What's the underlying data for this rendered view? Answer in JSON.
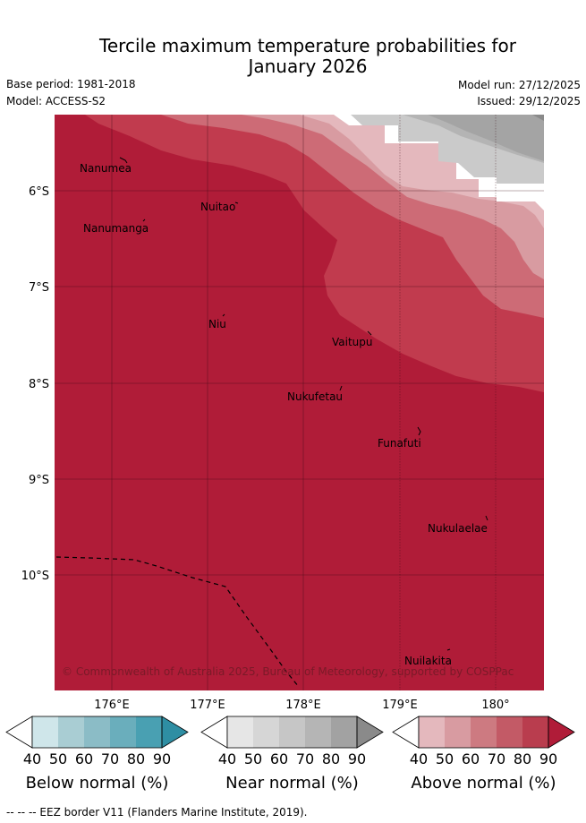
{
  "title_line1": "Tercile maximum temperature probabilities for",
  "title_line2": "January 2026",
  "base_period": "Base period: 1981-2018",
  "model": "Model: ACCESS-S2",
  "model_run": "Model run: 27/12/2025",
  "issued": "Issued: 29/12/2025",
  "map": {
    "lat_labels": [
      "6°S",
      "7°S",
      "8°S",
      "9°S",
      "10°S"
    ],
    "lon_labels": [
      "176°E",
      "177°E",
      "178°E",
      "179°E",
      "180°"
    ],
    "places": [
      "Nanumea",
      "Nuitao",
      "Nanumanga",
      "Niu",
      "Vaitupu",
      "Nukufetau",
      "Funafuti",
      "Nukulaelae",
      "Nuilakita"
    ],
    "copyright": "© Commonwealth of Australia 2025, Bureau of Meteorology, supported by COSPPac",
    "colors": {
      "above_90": "#b01c38",
      "above_80": "#c13b4e",
      "above_70": "#cd6b76",
      "above_60": "#d89ba1",
      "above_50": "#e4b8bd",
      "near_60": "#cacaca",
      "near_70": "#b4b4b4",
      "near_80": "#a4a4a4"
    }
  },
  "colorbars": [
    {
      "name": "below",
      "title": "Below normal (%)",
      "ticks": [
        "40",
        "50",
        "60",
        "70",
        "80",
        "90"
      ],
      "colors": [
        "#ffffff",
        "#cfe6ea",
        "#a9cdd3",
        "#8bbcc6",
        "#6aaebc",
        "#49a0b2",
        "#2e8ea3"
      ]
    },
    {
      "name": "near",
      "title": "Near normal (%)",
      "ticks": [
        "40",
        "50",
        "60",
        "70",
        "80",
        "90"
      ],
      "colors": [
        "#ffffff",
        "#e6e6e6",
        "#d6d6d6",
        "#c6c6c6",
        "#b5b5b5",
        "#a2a2a2",
        "#8a8a8a"
      ]
    },
    {
      "name": "above",
      "title": "Above normal (%)",
      "ticks": [
        "40",
        "50",
        "60",
        "70",
        "80",
        "90"
      ],
      "colors": [
        "#ffffff",
        "#e4b8bd",
        "#d89ba1",
        "#cd7a81",
        "#c35a66",
        "#b93d4e",
        "#b01c38"
      ]
    }
  ],
  "footnote": "--  --  -- EEZ border V11 (Flanders Marine Institute, 2019)."
}
